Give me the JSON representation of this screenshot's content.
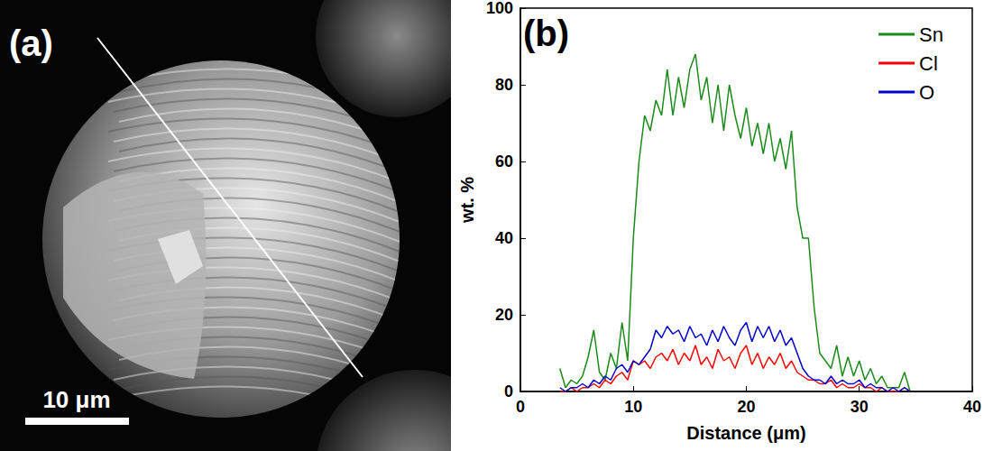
{
  "image": {
    "label": "(a)",
    "scale_bar": "10 μm"
  },
  "chart_data": {
    "type": "line",
    "title": "(b)",
    "x_label": "Distance (μm)",
    "y_label": "wt. %",
    "xlim": [
      0,
      40
    ],
    "xticks": [
      0,
      10,
      20,
      30,
      40
    ],
    "ylim": [
      0,
      100
    ],
    "yticks": [
      0,
      20,
      40,
      60,
      80,
      100
    ],
    "grid": false,
    "legend": "upper right",
    "x": [
      3.5,
      4,
      4.5,
      5,
      5.5,
      6,
      6.5,
      7,
      7.5,
      8,
      8.5,
      9,
      9.5,
      10,
      10.5,
      11,
      11.5,
      12,
      12.5,
      13,
      13.5,
      14,
      14.5,
      15,
      15.5,
      16,
      16.5,
      17,
      17.5,
      18,
      18.5,
      19,
      19.5,
      20,
      20.5,
      21,
      21.5,
      22,
      22.5,
      23,
      23.5,
      24,
      24.5,
      25,
      25.5,
      26,
      26.5,
      27,
      27.5,
      28,
      28.5,
      29,
      29.5,
      30,
      30.5,
      31,
      31.5,
      32,
      32.5,
      33,
      33.5,
      34,
      34.5
    ],
    "series": [
      {
        "name": "Sn",
        "color": "#1a8a1a",
        "values": [
          6,
          1,
          3,
          2,
          4,
          9,
          16,
          5,
          3,
          10,
          6,
          18,
          8,
          40,
          60,
          72,
          68,
          76,
          72,
          84,
          72,
          82,
          74,
          84,
          88,
          76,
          82,
          70,
          80,
          68,
          80,
          72,
          66,
          74,
          64,
          70,
          62,
          70,
          60,
          66,
          58,
          68,
          48,
          40,
          40,
          22,
          10,
          8,
          6,
          12,
          4,
          9,
          4,
          8,
          3,
          6,
          2,
          4,
          1,
          1,
          1,
          5,
          0
        ]
      },
      {
        "name": "Cl",
        "color": "#ff0000",
        "values": [
          0,
          0,
          1,
          0,
          1,
          1,
          2,
          1,
          3,
          2,
          4,
          5,
          3,
          8,
          7,
          8,
          6,
          9,
          10,
          8,
          11,
          7,
          10,
          8,
          12,
          7,
          9,
          6,
          11,
          8,
          9,
          6,
          10,
          12,
          7,
          10,
          6,
          9,
          7,
          10,
          6,
          8,
          5,
          4,
          3,
          3,
          2,
          2,
          3,
          1,
          2,
          1,
          1,
          2,
          1,
          1,
          0,
          1,
          0,
          0,
          0,
          1,
          0
        ]
      },
      {
        "name": "O",
        "color": "#0000cc",
        "values": [
          1,
          0,
          1,
          1,
          2,
          1,
          3,
          2,
          4,
          3,
          6,
          7,
          5,
          8,
          7,
          9,
          11,
          16,
          14,
          17,
          15,
          16,
          13,
          17,
          14,
          15,
          12,
          16,
          13,
          17,
          14,
          12,
          16,
          18,
          13,
          17,
          14,
          17,
          13,
          16,
          12,
          14,
          10,
          6,
          4,
          3,
          3,
          2,
          4,
          2,
          3,
          2,
          2,
          3,
          1,
          2,
          1,
          1,
          0,
          1,
          0,
          1,
          0
        ]
      }
    ]
  }
}
